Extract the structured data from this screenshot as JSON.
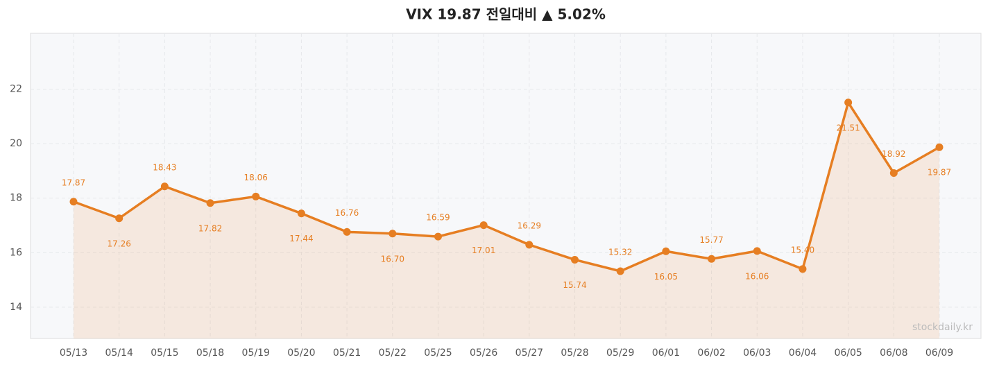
{
  "chart_data": {
    "type": "line",
    "title": "VIX  19.87  전일대비 ▲ 5.02%",
    "watermark": "stockdaily.kr",
    "categories": [
      "05/13",
      "05/14",
      "05/15",
      "05/18",
      "05/19",
      "05/20",
      "05/21",
      "05/22",
      "05/25",
      "05/26",
      "05/27",
      "05/28",
      "05/29",
      "06/01",
      "06/02",
      "06/03",
      "06/04",
      "06/05",
      "06/08",
      "06/09"
    ],
    "values": [
      17.87,
      17.26,
      18.43,
      17.82,
      18.06,
      17.44,
      16.76,
      16.7,
      16.59,
      17.01,
      16.29,
      15.74,
      15.32,
      16.05,
      15.77,
      16.06,
      15.4,
      21.51,
      18.92,
      19.87
    ],
    "value_labels": [
      "17.87",
      "17.26",
      "18.43",
      "17.82",
      "18.06",
      "17.44",
      "16.76",
      "16.70",
      "16.59",
      "17.01",
      "16.29",
      "15.74",
      "15.32",
      "16.05",
      "15.77",
      "16.06",
      "15.40",
      "21.51",
      "18.92",
      "19.87"
    ],
    "color": "#e67e22",
    "ylim": [
      12.85,
      24.05
    ],
    "yticks": [
      14,
      16,
      18,
      20,
      22
    ],
    "grid": true,
    "area": true
  }
}
